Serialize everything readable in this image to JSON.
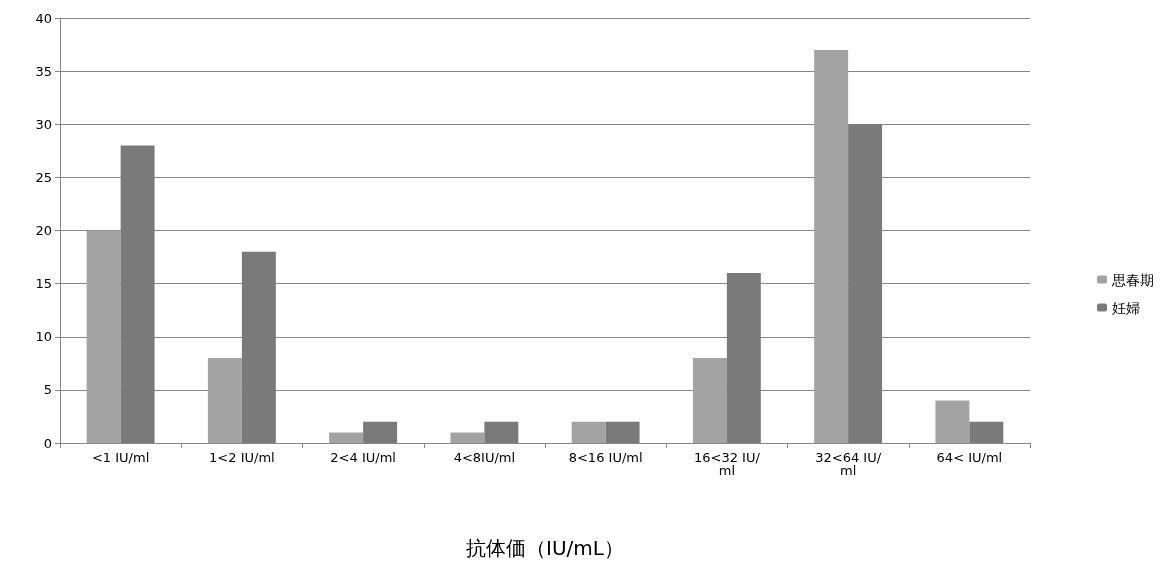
{
  "chart_data": {
    "type": "bar",
    "xlabel": "抗体価（IU/mL）",
    "categories": [
      "<1 IU/ml",
      "1<2 IU/ml",
      "2<4 IU/ml",
      "4<8IU/ml",
      "8<16 IU/ml",
      "16<32 IU/ml",
      "32<64 IU/ml",
      "64< IU/ml"
    ],
    "series": [
      {
        "name": "思春期",
        "color": "#a3a3a3",
        "values": [
          20,
          8,
          1,
          1,
          2,
          8,
          37,
          4
        ]
      },
      {
        "name": "妊婦",
        "color": "#7a7a7a",
        "values": [
          28,
          18,
          2,
          2,
          2,
          16,
          30,
          2
        ]
      }
    ],
    "ylim": [
      0,
      40
    ],
    "yticks": [
      0,
      5,
      10,
      15,
      20,
      25,
      30,
      35,
      40
    ],
    "grid": true,
    "legend": "right"
  }
}
